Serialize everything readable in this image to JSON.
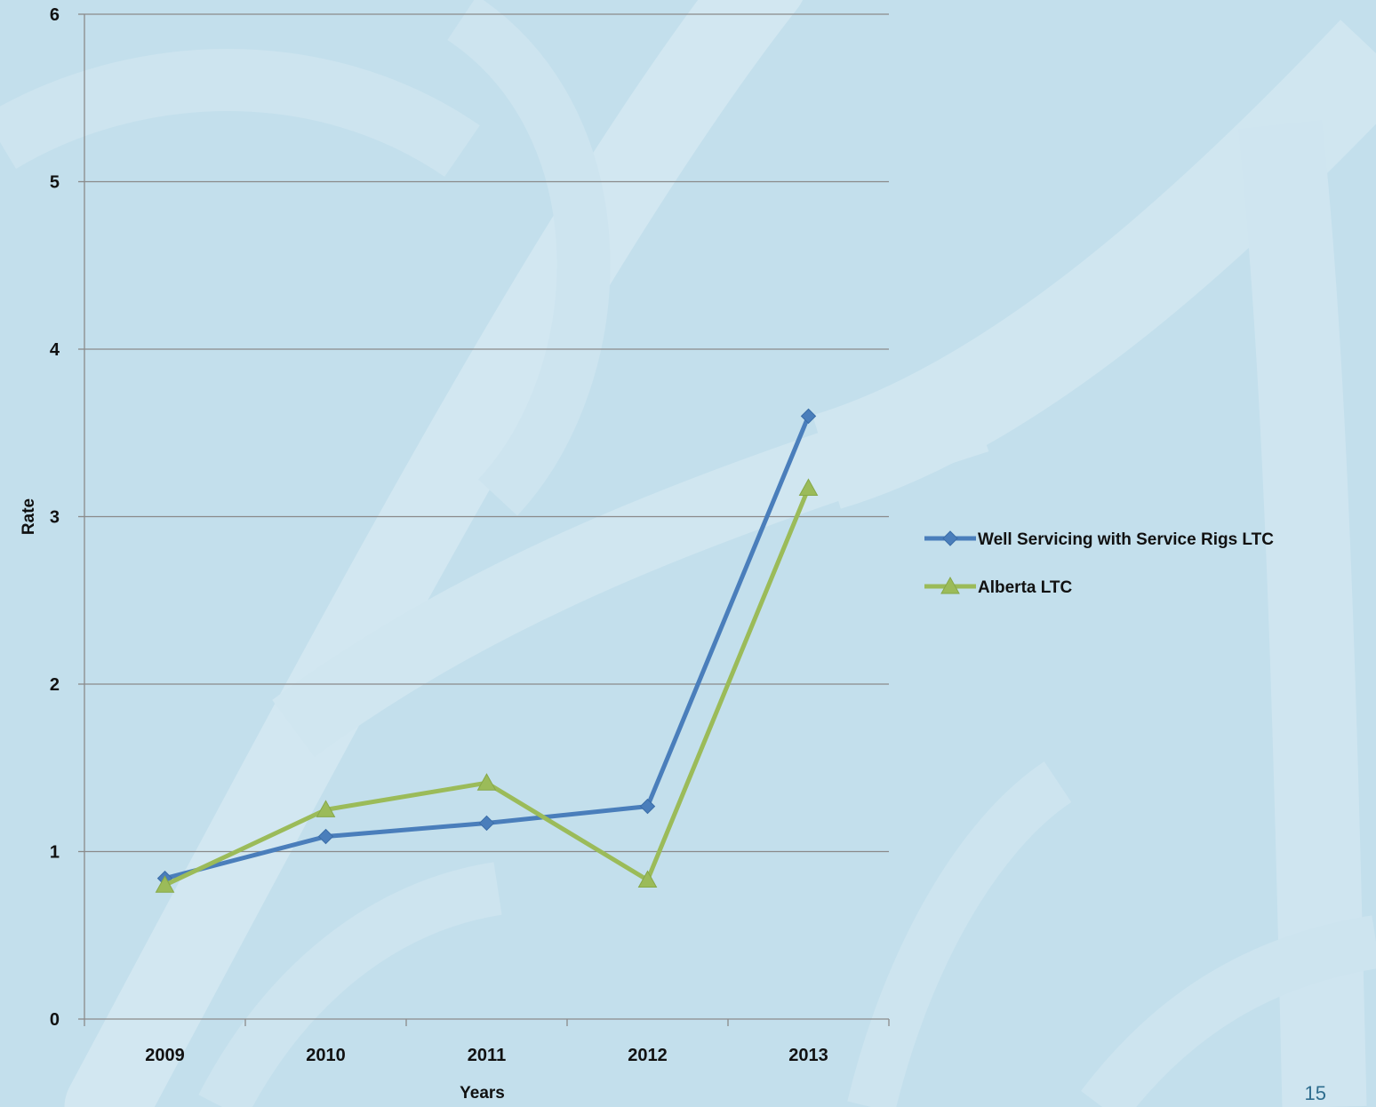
{
  "page": {
    "number": "15",
    "background_color": "#c3dfec"
  },
  "chart_data": {
    "type": "line",
    "categories": [
      "2009",
      "2010",
      "2011",
      "2012",
      "2013"
    ],
    "series": [
      {
        "name": "Well Servicing with Service Rigs LTC",
        "values": [
          0.84,
          1.09,
          1.17,
          1.27,
          3.6
        ],
        "color": "#4a7ebb",
        "marker": "diamond"
      },
      {
        "name": "Alberta LTC",
        "values": [
          0.8,
          1.25,
          1.41,
          0.83,
          3.17
        ],
        "color": "#9bbb59",
        "marker": "triangle"
      }
    ],
    "xlabel": "Years",
    "ylabel": "Rate",
    "ylim": [
      0,
      6
    ],
    "yticks": [
      "0",
      "1",
      "2",
      "3",
      "4",
      "5",
      "6"
    ],
    "grid": true,
    "legend_position": "right"
  }
}
